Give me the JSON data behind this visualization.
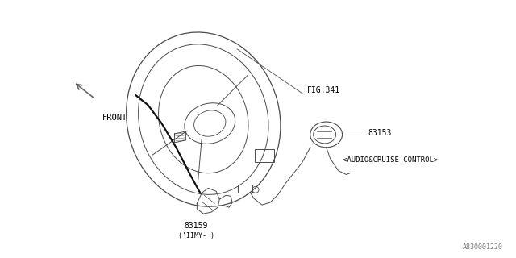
{
  "bg_color": "#ffffff",
  "line_color": "#4a4a4a",
  "text_color": "#000000",
  "part_83153": "83153",
  "part_83159": "83159",
  "label_fig341": "FIG.341",
  "label_audio": "<AUDIO&CRUISE CONTROL>",
  "label_front": "FRONT",
  "label_limy": "('IIMY- )",
  "watermark": "A830001220",
  "fig_width": 6.4,
  "fig_height": 3.2,
  "dpi": 100
}
